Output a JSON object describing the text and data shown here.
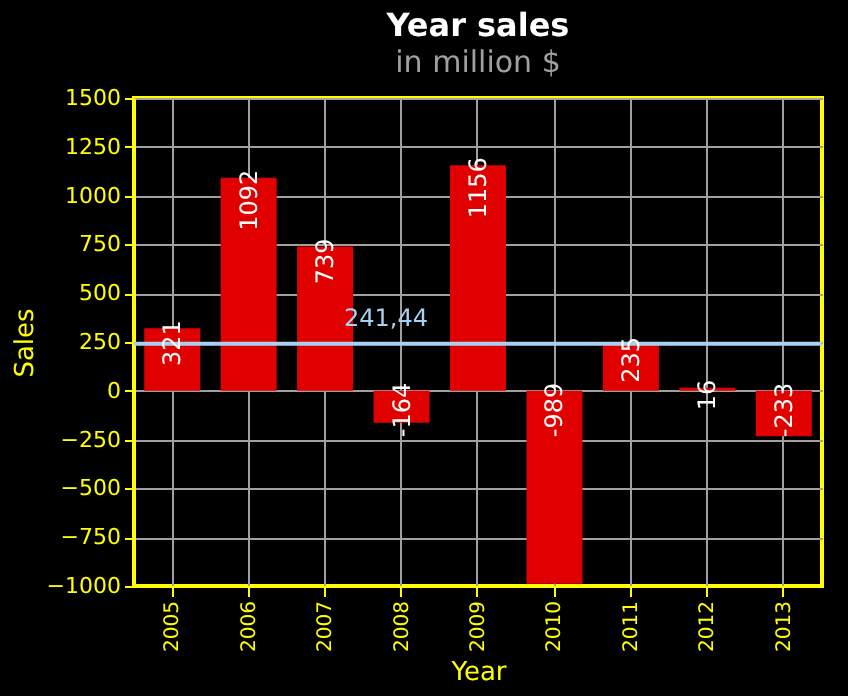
{
  "chart_data": {
    "type": "bar",
    "title": "Year sales",
    "subtitle": "in million $",
    "xlabel": "Year",
    "ylabel": "Sales",
    "categories": [
      "2005",
      "2006",
      "2007",
      "2008",
      "2009",
      "2010",
      "2011",
      "2012",
      "2013"
    ],
    "values": [
      321,
      1092,
      739,
      -164,
      1156,
      -989,
      235,
      16,
      -233
    ],
    "color": "#e00000",
    "data_labels": true,
    "grid": true,
    "ylim": [
      -1000,
      1500
    ],
    "yticks": [
      -1000,
      -750,
      -500,
      -250,
      0,
      250,
      500,
      750,
      1000,
      1250,
      1500
    ],
    "ref_lines": [
      {
        "axis": "y",
        "value": 241.44,
        "label": "241,44",
        "color": "#a8d0f0"
      }
    ]
  }
}
